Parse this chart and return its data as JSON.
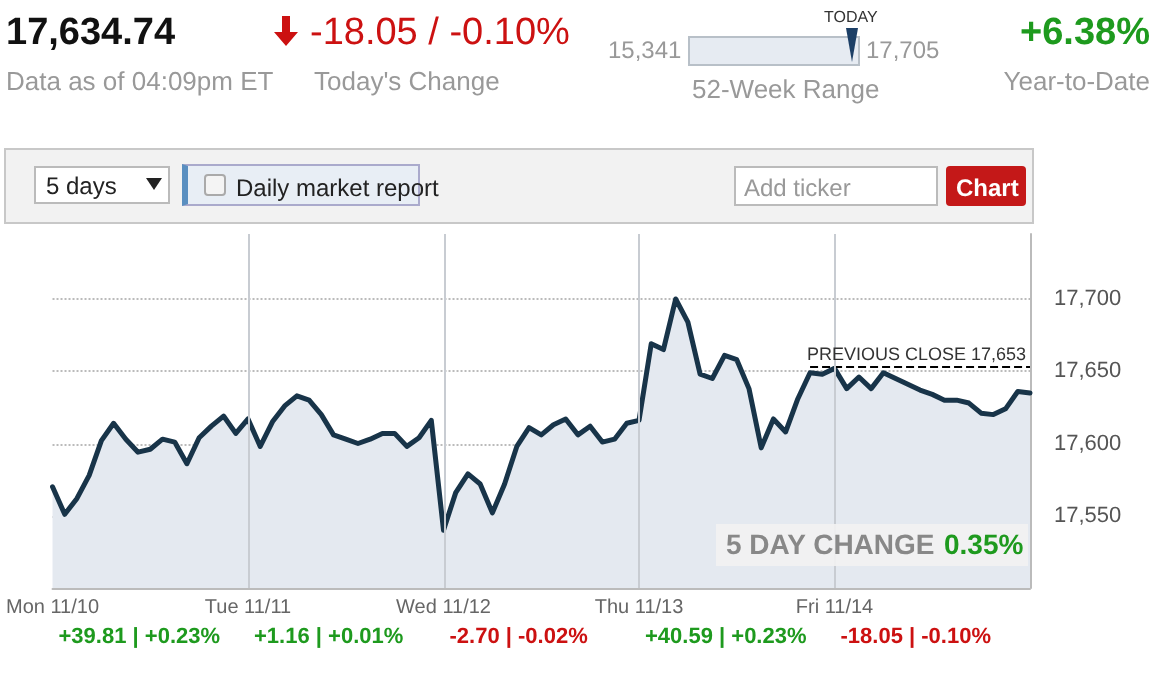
{
  "chart_data": {
    "type": "area",
    "categories": [
      "Mon 11/10",
      null,
      null,
      null,
      null,
      null,
      null,
      null,
      null,
      null,
      null,
      null,
      null,
      null,
      null,
      null,
      "Tue 11/11",
      null,
      null,
      null,
      null,
      null,
      null,
      null,
      null,
      null,
      null,
      null,
      null,
      null,
      null,
      null,
      "Wed 11/12",
      null,
      null,
      null,
      null,
      null,
      null,
      null,
      null,
      null,
      null,
      null,
      null,
      null,
      null,
      null,
      "Thu 11/13",
      null,
      null,
      null,
      null,
      null,
      null,
      null,
      null,
      null,
      null,
      null,
      null,
      null,
      null,
      null,
      "Fri 11/14",
      null,
      null,
      null,
      null,
      null,
      null,
      null,
      null,
      null,
      null,
      null,
      null,
      null,
      null,
      null,
      null
    ],
    "series": [
      {
        "color": "#183449",
        "values": [
          17570,
          17551,
          17562,
          17578,
          17602,
          17614,
          17603,
          17594,
          17596,
          17603,
          17601,
          17586,
          17604,
          17612,
          17619,
          17607,
          17617,
          17598,
          17615,
          17626,
          17633,
          17630,
          17620,
          17606,
          17603,
          17600,
          17603,
          17607,
          17607,
          17598,
          17604,
          17616,
          17540,
          17566,
          17579,
          17572,
          17552,
          17572,
          17598,
          17611,
          17606,
          17613,
          17617,
          17606,
          17612,
          17601,
          17603,
          17614,
          17616,
          17669,
          17665,
          17700,
          17684,
          17648,
          17645,
          17661,
          17658,
          17638,
          17597,
          17617,
          17608,
          17631,
          17649,
          17648,
          17652,
          17638,
          17646,
          17638,
          17649,
          17645,
          17641,
          17637,
          17634,
          17630,
          17630,
          17628,
          17621,
          17620,
          17624,
          17636,
          17635
        ]
      }
    ],
    "ylim": [
      17500,
      17745
    ],
    "yticks": [
      {
        "value": 17550,
        "label": "17,550"
      },
      {
        "value": 17600,
        "label": "17,600"
      },
      {
        "value": 17650,
        "label": "17,650"
      },
      {
        "value": 17700,
        "label": "17,700"
      }
    ],
    "grid": "y",
    "ref_lines": [
      {
        "axis": "y",
        "value": 17653,
        "label": "PREVIOUS CLOSE 17,653",
        "line_style": "dashed",
        "color": "#000000"
      },
      {
        "axis": "x",
        "value": "Tue 11/11",
        "label": null,
        "color": "#c8ccd2"
      },
      {
        "axis": "x",
        "value": "Wed 11/12",
        "label": null,
        "color": "#c8ccd2"
      },
      {
        "axis": "x",
        "value": "Thu 11/13",
        "label": null,
        "color": "#c8ccd2"
      },
      {
        "axis": "x",
        "value": "Fri 11/14",
        "label": null,
        "color": "#c8ccd2"
      }
    ],
    "annotations": [
      "17,634.74",
      "Data as of 04:09pm ET",
      "-18.05 / -0.10%",
      "Today's Change",
      "15,341",
      "17,705",
      "TODAY",
      "52-Week Range",
      "+6.38%",
      "Year-to-Date",
      "5 DAY CHANGE",
      "0.35%",
      "+39.81 | +0.23%",
      "+1.16 | +0.01%",
      "-2.70 | -0.02%",
      "+40.59 | +0.23%",
      "-18.05 | -0.10%",
      "5 days",
      "Daily market report",
      "Add ticker",
      "Chart"
    ]
  }
}
